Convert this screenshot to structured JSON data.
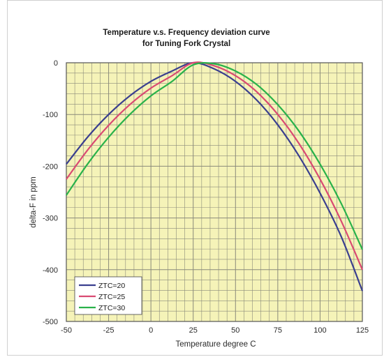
{
  "colors": {
    "plot_bg": "#f5f3b8",
    "grid": "#8a8a7a",
    "frame": "#555555",
    "blue": "#3a3f8f",
    "pink": "#d94a72",
    "green": "#29b24a"
  },
  "chart_data": {
    "type": "line",
    "title": [
      "Temperature v.s. Frequency deviation curve",
      "for Tuning Fork Crystal"
    ],
    "xlabel": "Temperature degree C",
    "ylabel": "delta-F in ppm",
    "xlim": [
      -50,
      125
    ],
    "ylim": [
      -500,
      0
    ],
    "xticks": [
      -50,
      -25,
      0,
      25,
      50,
      75,
      100,
      125
    ],
    "yticks": [
      0,
      -100,
      -200,
      -300,
      -400,
      -500
    ],
    "grid": true,
    "legend_position": "bottom-left",
    "x": [
      -50,
      -37.5,
      -25,
      -12.5,
      0,
      12.5,
      25,
      37.5,
      50,
      62.5,
      75,
      87.5,
      100,
      112.5,
      125
    ],
    "series": [
      {
        "name": "ZTC=20",
        "color": "blue",
        "values": [
          -196,
          -144,
          -100,
          -64,
          -36,
          -16,
          0,
          -12,
          -36,
          -72,
          -120,
          -180,
          -252,
          -336,
          -441
        ]
      },
      {
        "name": "ZTC=25",
        "color": "pink",
        "values": [
          -225,
          -169,
          -121,
          -81,
          -49,
          -25,
          0,
          -6,
          -25,
          -56,
          -100,
          -156,
          -225,
          -306,
          -400
        ]
      },
      {
        "name": "ZTC=30",
        "color": "green",
        "values": [
          -256,
          -196,
          -144,
          -100,
          -64,
          -36,
          -4,
          -2,
          -16,
          -42,
          -81,
          -132,
          -196,
          -272,
          -361
        ]
      }
    ]
  }
}
